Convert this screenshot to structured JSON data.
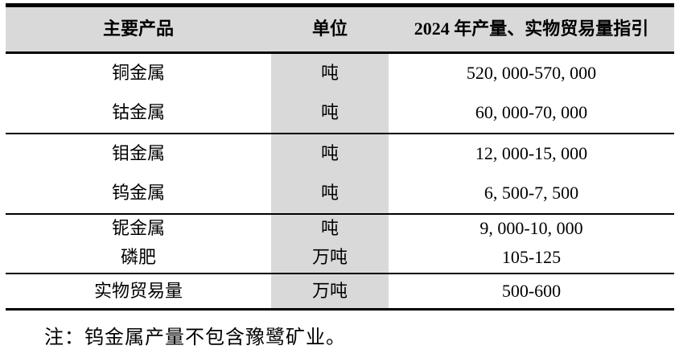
{
  "table": {
    "columns": [
      {
        "label": "主要产品"
      },
      {
        "label": "单位"
      },
      {
        "label": "2024 年产量、实物贸易量指引"
      }
    ],
    "rows": [
      {
        "product": "铜金属",
        "unit": "吨",
        "guidance": "520, 000-570, 000"
      },
      {
        "product": "钴金属",
        "unit": "吨",
        "guidance": "60, 000-70, 000"
      },
      {
        "product": "钼金属",
        "unit": "吨",
        "guidance": "12, 000-15, 000"
      },
      {
        "product": "钨金属",
        "unit": "吨",
        "guidance": "6, 500-7, 500"
      },
      {
        "product": "铌金属",
        "unit": "吨",
        "guidance": "9, 000-10, 000"
      },
      {
        "product": "磷肥",
        "unit": "万吨",
        "guidance": "105-125"
      },
      {
        "product": "实物贸易量",
        "unit": "万吨",
        "guidance": "500-600"
      }
    ],
    "note": "注：钨金属产量不包含豫鹭矿业。"
  },
  "colors": {
    "header_bg": "#d9d9d9",
    "unit_column_bg": "#d9d9d9",
    "border": "#000000",
    "text": "#000000",
    "page_bg": "#ffffff"
  }
}
